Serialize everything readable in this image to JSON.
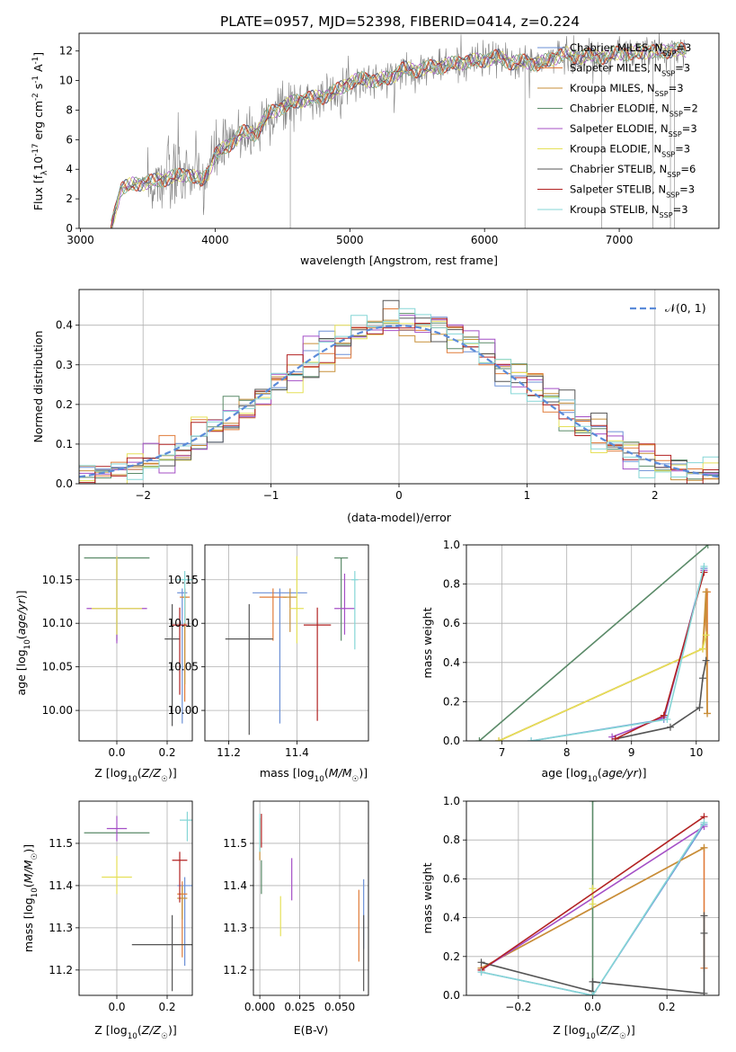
{
  "figure_title": "PLATE=0957, MJD=52398, FIBERID=0414, z=0.224",
  "legend_labels": [
    "Chabrier MILES, N_SSP=3",
    "Salpeter MILES, N_SSP=3",
    "Kroupa MILES, N_SSP=3",
    "Chabrier ELODIE, N_SSP=2",
    "Salpeter ELODIE, N_SSP=3",
    "Kroupa ELODIE, N_SSP=3",
    "Chabrier STELIB, N_SSP=6",
    "Salpeter STELIB, N_SSP=3",
    "Kroupa STELIB, N_SSP=3"
  ],
  "series_colors": [
    "#6b8fd6",
    "#e07b39",
    "#c78f38",
    "#5a8a68",
    "#a44fc6",
    "#e5e058",
    "#555555",
    "#b22222",
    "#85d6d6"
  ],
  "chart_data": [
    {
      "id": "spectrum",
      "type": "line",
      "title": "PLATE=0957, MJD=52398, FIBERID=0414, z=0.224",
      "xlabel": "wavelength [Angstrom, rest frame]",
      "ylabel": "Flux [f_λ 10^-17 erg cm^-2 s^-1 A^-1]",
      "xlim": [
        2990,
        7740
      ],
      "ylim": [
        0,
        13.2
      ],
      "xticks": [
        3000,
        4000,
        5000,
        6000,
        7000
      ],
      "yticks": [
        0,
        2,
        4,
        6,
        8,
        10,
        12
      ],
      "data_x": [
        3225,
        3300,
        3400,
        3500,
        3550,
        3600,
        3700,
        3800,
        3900,
        3950,
        4000,
        4100,
        4200,
        4300,
        4400,
        4500,
        4600,
        4700,
        4800,
        4900,
        5000,
        5100,
        5200,
        5300,
        5400,
        5500,
        5600,
        5700,
        5800,
        5900,
        6000,
        6100,
        6200,
        6300,
        6400,
        6500,
        6600,
        6700,
        6800,
        6900,
        7000,
        7100,
        7200,
        7300,
        7400,
        7500
      ],
      "data_y": [
        0,
        2.7,
        3.0,
        3.1,
        3.2,
        3.3,
        3.5,
        3.7,
        3.2,
        3.8,
        5.0,
        5.6,
        6.5,
        6.4,
        7.8,
        8.2,
        8.6,
        8.8,
        8.9,
        9.3,
        9.9,
        10.1,
        10.0,
        10.2,
        10.8,
        10.7,
        10.9,
        11.0,
        11.2,
        11.3,
        11.4,
        11.6,
        11.2,
        11.3,
        11.1,
        11.5,
        11.8,
        11.6,
        11.7,
        11.6,
        11.9,
        11.8,
        12.0,
        11.9,
        12.1,
        12.0
      ],
      "grid": false,
      "legend_position": "upper right"
    },
    {
      "id": "residuals",
      "type": "histogram",
      "xlabel": "(data-model)/error",
      "ylabel": "Normed distribution",
      "xlim": [
        -2.5,
        2.5
      ],
      "ylim": [
        0,
        0.49
      ],
      "xticks": [
        -2,
        -1,
        0,
        1,
        2
      ],
      "yticks": [
        0,
        0.1,
        0.2,
        0.3,
        0.4
      ],
      "bin_width": 0.125,
      "reference_curve": "N(0,1)",
      "grid": true,
      "legend_position": "upper right"
    },
    {
      "id": "age_vs_Z",
      "type": "errorbar",
      "xlabel": "Z [log10(Z/Z☉)]",
      "ylabel": "age [log10(age/yr)]",
      "xlim": [
        -0.15,
        0.3
      ],
      "ylim": [
        9.965,
        10.19
      ],
      "xticks": [
        0.0,
        0.2
      ],
      "yticks": [
        10.0,
        10.05,
        10.1,
        10.15
      ],
      "points": [
        {
          "x": 0.26,
          "y": 10.135,
          "xerr": 0.02,
          "yerr_lo": 0.15,
          "yerr_hi": 0.005
        },
        {
          "x": 0.27,
          "y": 10.13,
          "xerr": 0.02,
          "yerr_lo": 0.12,
          "yerr_hi": 0.01
        },
        {
          "x": 0.27,
          "y": 10.13,
          "xerr": 0.01,
          "yerr_lo": 0.1,
          "yerr_hi": 0.01
        },
        {
          "x": 0.0,
          "y": 10.175,
          "xerr": 0.13,
          "yerr_lo": 0.095,
          "yerr_hi": 0.0
        },
        {
          "x": 0.0,
          "y": 10.117,
          "xerr": 0.12,
          "yerr_lo": 0.04,
          "yerr_hi": 0.06
        },
        {
          "x": 0.0,
          "y": 10.117,
          "xerr": 0.1,
          "yerr_lo": 0.03,
          "yerr_hi": 0.06
        },
        {
          "x": 0.22,
          "y": 10.082,
          "xerr": 0.03,
          "yerr_lo": 0.1,
          "yerr_hi": 0.04
        },
        {
          "x": 0.25,
          "y": 10.098,
          "xerr": 0.03,
          "yerr_lo": 0.08,
          "yerr_hi": 0.02
        },
        {
          "x": 0.27,
          "y": 10.15,
          "xerr": 0.03,
          "yerr_lo": 0.05,
          "yerr_hi": 0.01
        }
      ],
      "grid": true
    },
    {
      "id": "age_vs_mass",
      "type": "errorbar",
      "xlabel": "mass [log10(M/M☉)]",
      "ylabel": "",
      "xlim": [
        11.13,
        11.61
      ],
      "ylim": [
        9.965,
        10.19
      ],
      "xticks": [
        11.2,
        11.4
      ],
      "yticks": [
        10.0,
        10.05,
        10.1,
        10.15
      ],
      "points": [
        {
          "x": 11.35,
          "y": 10.135,
          "xerr": 0.08,
          "yerr_lo": 0.15,
          "yerr_hi": 0.005
        },
        {
          "x": 11.33,
          "y": 10.13,
          "xerr": 0.04,
          "yerr_lo": 0.05,
          "yerr_hi": 0.01
        },
        {
          "x": 11.38,
          "y": 10.13,
          "xerr": 0.02,
          "yerr_lo": 0.04,
          "yerr_hi": 0.01
        },
        {
          "x": 11.53,
          "y": 10.175,
          "xerr": 0.02,
          "yerr_lo": 0.095,
          "yerr_hi": 0.0
        },
        {
          "x": 11.54,
          "y": 10.117,
          "xerr": 0.03,
          "yerr_lo": 0.03,
          "yerr_hi": 0.04
        },
        {
          "x": 11.4,
          "y": 10.117,
          "xerr": 0.02,
          "yerr_lo": 0.04,
          "yerr_hi": 0.06
        },
        {
          "x": 11.26,
          "y": 10.082,
          "xerr": 0.07,
          "yerr_lo": 0.11,
          "yerr_hi": 0.04
        },
        {
          "x": 11.46,
          "y": 10.098,
          "xerr": 0.04,
          "yerr_lo": 0.11,
          "yerr_hi": 0.02
        },
        {
          "x": 11.57,
          "y": 10.15,
          "xerr": 0.01,
          "yerr_lo": 0.08,
          "yerr_hi": 0.01
        }
      ],
      "grid": true
    },
    {
      "id": "weight_vs_age",
      "type": "line",
      "xlabel": "age [log10(age/yr)]",
      "ylabel": "mass weight",
      "xlim": [
        6.45,
        10.35
      ],
      "ylim": [
        0,
        1.0
      ],
      "xticks": [
        7,
        8,
        9,
        10
      ],
      "yticks": [
        0.0,
        0.2,
        0.4,
        0.6,
        0.8,
        1.0
      ],
      "grid": true
    },
    {
      "id": "mass_vs_Z",
      "type": "errorbar",
      "xlabel": "Z [log10(Z/Z☉)]",
      "ylabel": "mass [log10(M/M☉)]",
      "xlim": [
        -0.15,
        0.3
      ],
      "ylim": [
        11.14,
        11.6
      ],
      "xticks": [
        0.0,
        0.2
      ],
      "yticks": [
        11.2,
        11.3,
        11.4,
        11.5
      ],
      "points": [
        {
          "x": 0.27,
          "y": 11.4,
          "xerr": 0.03,
          "yerr_lo": 0.19,
          "yerr_hi": 0.02
        },
        {
          "x": 0.26,
          "y": 11.38,
          "xerr": 0.02,
          "yerr_lo": 0.15,
          "yerr_hi": 0.03
        },
        {
          "x": 0.26,
          "y": 11.37,
          "xerr": 0.02,
          "yerr_lo": 0.05,
          "yerr_hi": 0.03
        },
        {
          "x": 0.0,
          "y": 11.525,
          "xerr": 0.13,
          "yerr_lo": 0.0,
          "yerr_hi": 0.0
        },
        {
          "x": 0.0,
          "y": 11.535,
          "xerr": 0.04,
          "yerr_lo": 0.03,
          "yerr_hi": 0.03
        },
        {
          "x": 0.0,
          "y": 11.42,
          "xerr": 0.06,
          "yerr_lo": 0.04,
          "yerr_hi": 0.05
        },
        {
          "x": 0.22,
          "y": 11.26,
          "xerr": 0.16,
          "yerr_lo": 0.11,
          "yerr_hi": 0.07
        },
        {
          "x": 0.25,
          "y": 11.46,
          "xerr": 0.03,
          "yerr_lo": 0.1,
          "yerr_hi": 0.02
        },
        {
          "x": 0.28,
          "y": 11.555,
          "xerr": 0.03,
          "yerr_lo": 0.05,
          "yerr_hi": 0.02
        }
      ],
      "grid": true
    },
    {
      "id": "mass_vs_ebv",
      "type": "errorbar",
      "xlabel": "E(B-V)",
      "ylabel": "",
      "xlim": [
        -0.004,
        0.068
      ],
      "ylim": [
        11.14,
        11.6
      ],
      "xticks": [
        0.0,
        0.025,
        0.05
      ],
      "yticks": [
        11.2,
        11.3,
        11.4,
        11.5
      ],
      "points": [
        {
          "x": 0.065,
          "y": 11.33,
          "yerr_lo": 0.08,
          "yerr_hi": 0.085
        },
        {
          "x": 0.062,
          "y": 11.3,
          "yerr_lo": 0.08,
          "yerr_hi": 0.09
        },
        {
          "x": 0.0,
          "y": 11.5,
          "yerr_lo": 0.04,
          "yerr_hi": 0.06
        },
        {
          "x": 0.001,
          "y": 11.41,
          "yerr_lo": 0.03,
          "yerr_hi": 0.05
        },
        {
          "x": 0.02,
          "y": 11.415,
          "yerr_lo": 0.05,
          "yerr_hi": 0.05
        },
        {
          "x": 0.013,
          "y": 11.325,
          "yerr_lo": 0.045,
          "yerr_hi": 0.05
        },
        {
          "x": 0.065,
          "y": 11.26,
          "yerr_lo": 0.11,
          "yerr_hi": 0.07
        },
        {
          "x": 0.001,
          "y": 11.53,
          "yerr_lo": 0.04,
          "yerr_hi": 0.04
        },
        {
          "x": 0.0,
          "y": 11.52,
          "yerr_lo": 0.04,
          "yerr_hi": 0.05
        }
      ],
      "grid": true
    },
    {
      "id": "weight_vs_Z",
      "type": "line",
      "xlabel": "Z [log10(Z/Z☉)]",
      "ylabel": "mass weight",
      "xlim": [
        -0.34,
        0.34
      ],
      "ylim": [
        0,
        1.0
      ],
      "xticks": [
        -0.2,
        0.0,
        0.2
      ],
      "yticks": [
        0.0,
        0.2,
        0.4,
        0.6,
        0.8,
        1.0
      ],
      "grid": true
    }
  ]
}
